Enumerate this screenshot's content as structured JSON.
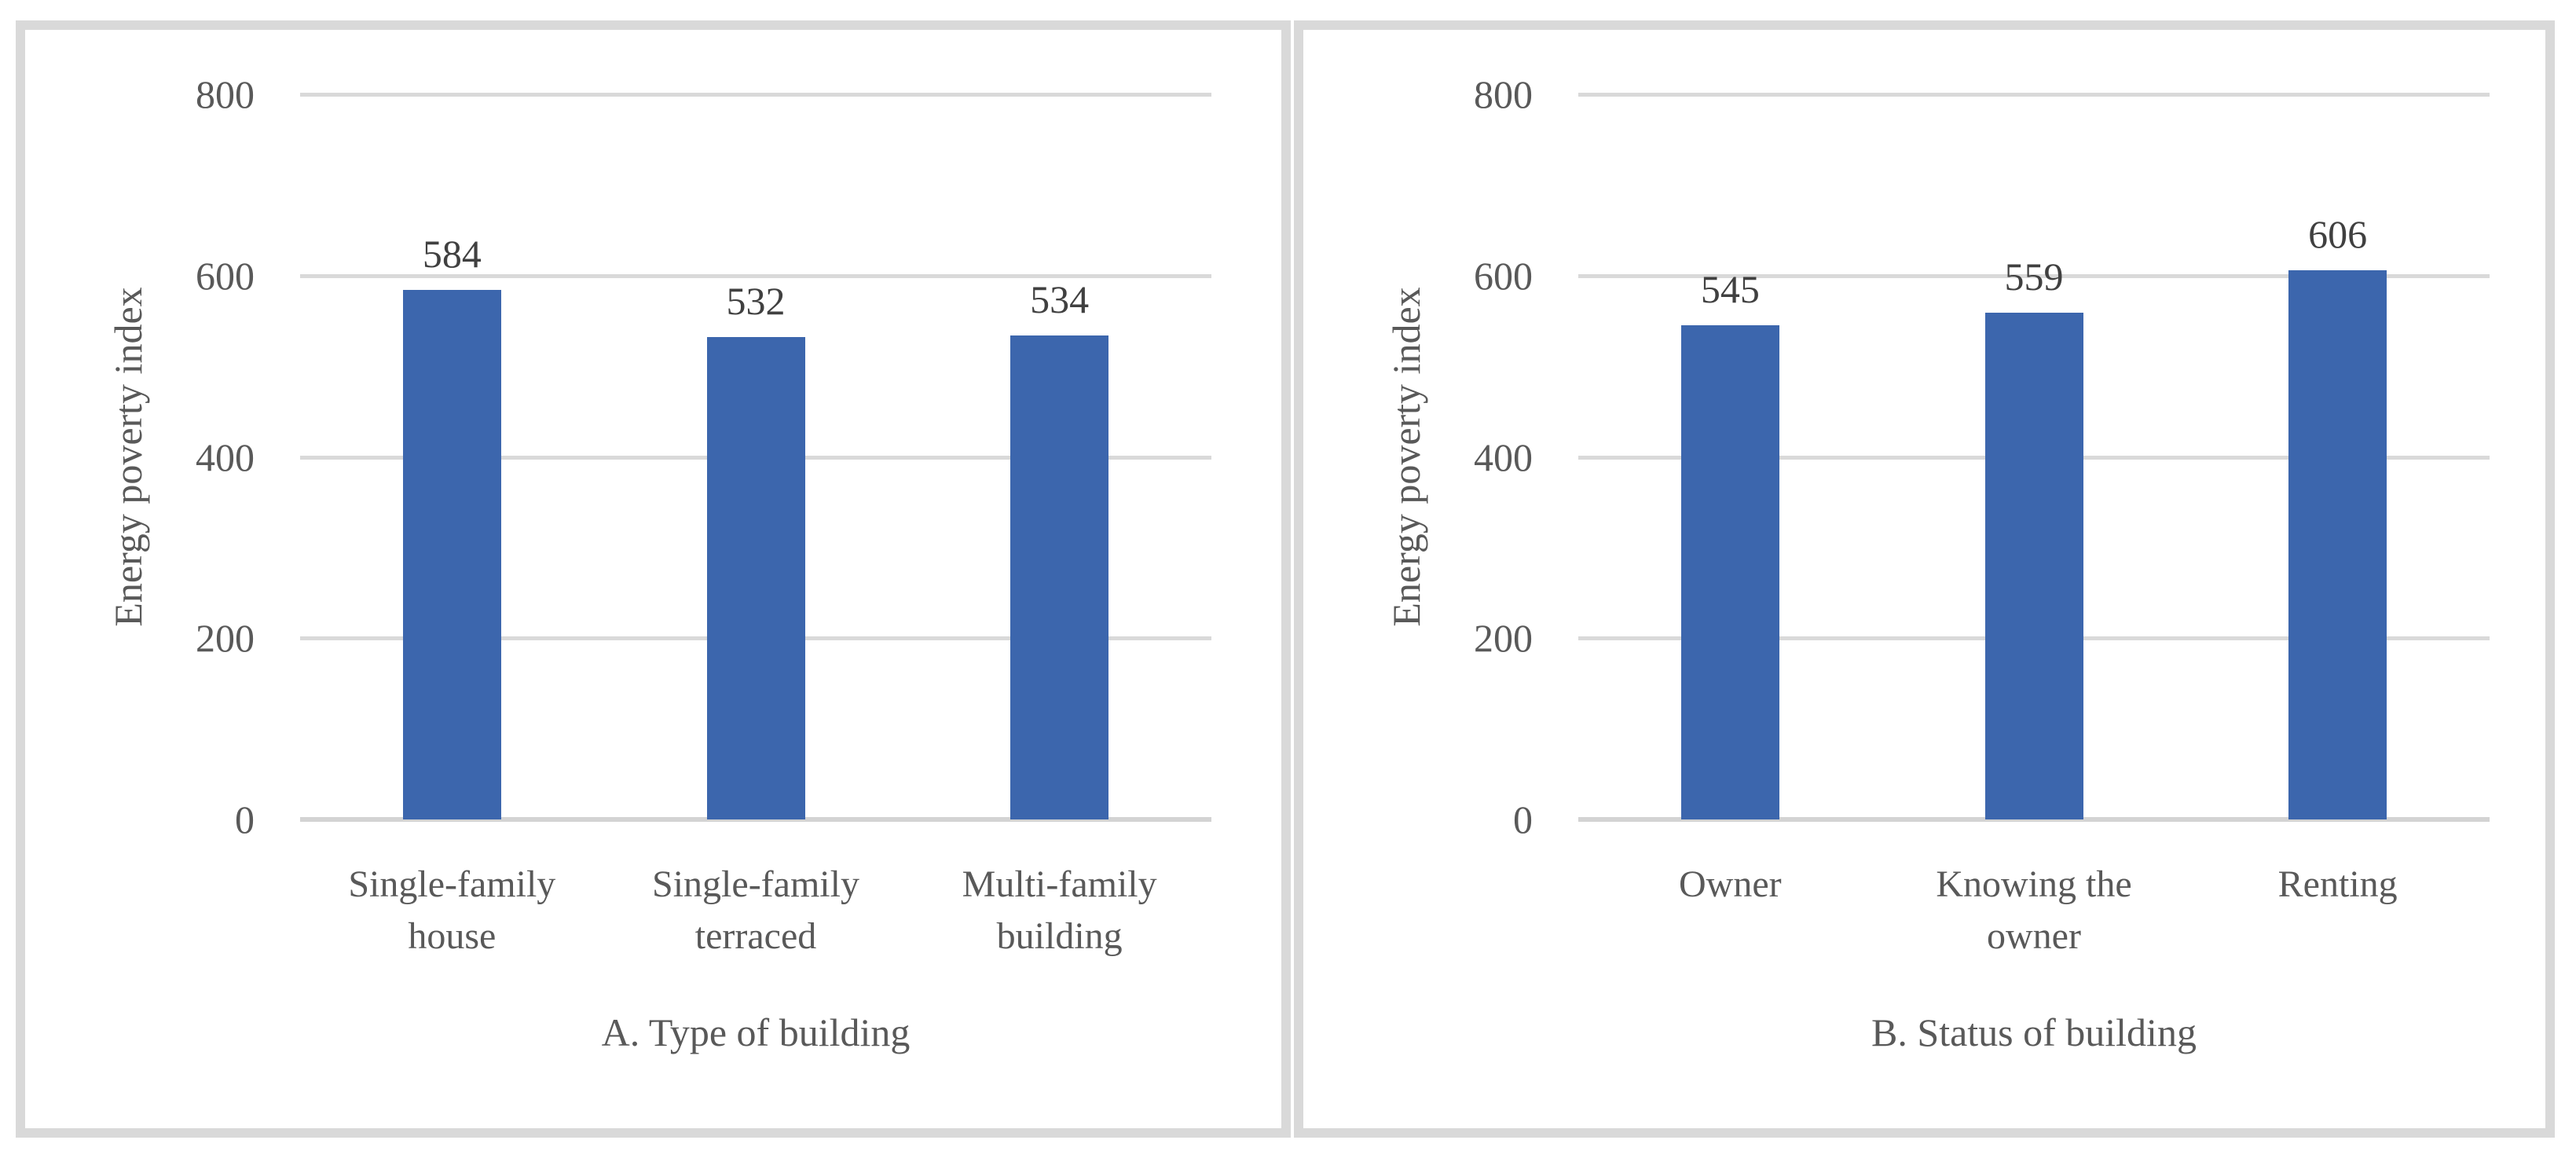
{
  "figure": {
    "background": "#FFFFFF",
    "panel_border_color": "#D9D9D9",
    "gridline_color": "#D9D9D9",
    "axis_line_color": "#D3D3D3",
    "text_color": "#595959",
    "bar_color": "#3C66AD"
  },
  "chart_data": [
    {
      "type": "bar",
      "caption": "A. Type of building",
      "ylabel": "Energy poverty index",
      "xlabel": "",
      "categories": [
        "Single-family house",
        "Single-family terraced",
        "Multi-family building"
      ],
      "values": [
        584,
        532,
        534
      ],
      "data_labels": [
        "584",
        "532",
        "534"
      ],
      "ylim": [
        0,
        800
      ],
      "yticks": [
        0,
        200,
        400,
        600,
        800
      ],
      "ytick_labels": [
        "0",
        "200",
        "400",
        "600",
        "800"
      ],
      "grid": "horizontal",
      "legend": "none",
      "bar_color": "#3C66AD"
    },
    {
      "type": "bar",
      "caption": "B. Status of building",
      "ylabel": "Energy poverty index",
      "xlabel": "",
      "categories": [
        "Owner",
        "Knowing the owner",
        "Renting"
      ],
      "values": [
        545,
        559,
        606
      ],
      "data_labels": [
        "545",
        "559",
        "606"
      ],
      "ylim": [
        0,
        800
      ],
      "yticks": [
        0,
        200,
        400,
        600,
        800
      ],
      "ytick_labels": [
        "0",
        "200",
        "400",
        "600",
        "800"
      ],
      "grid": "horizontal",
      "legend": "none",
      "bar_color": "#3C66AD"
    }
  ]
}
